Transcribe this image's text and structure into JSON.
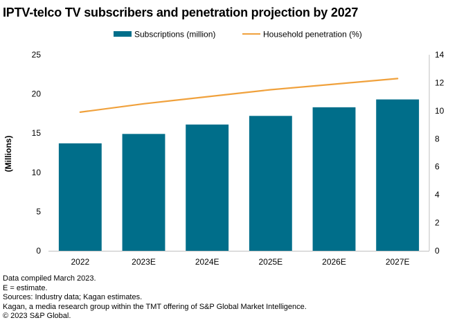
{
  "title": "IPTV-telco TV subscribers and penetration projection by 2027",
  "chart_data": {
    "type": "bar",
    "categories": [
      "2022",
      "2023E",
      "2024E",
      "2025E",
      "2026E",
      "2027E"
    ],
    "series": [
      {
        "name": "Subscriptions (million)",
        "type": "bar",
        "axis": "left",
        "color": "#006e8a",
        "values": [
          13.7,
          14.9,
          16.1,
          17.2,
          18.3,
          19.3
        ]
      },
      {
        "name": "Household penetration (%)",
        "type": "line",
        "axis": "right",
        "color": "#f0a13c",
        "values": [
          9.9,
          10.5,
          11.0,
          11.5,
          11.9,
          12.3
        ]
      }
    ],
    "ylabel": "(Millions)",
    "ylim": [
      0,
      25
    ],
    "yticks": [
      0,
      5,
      10,
      15,
      20,
      25
    ],
    "y2lim": [
      0,
      14
    ],
    "y2ticks": [
      0,
      2,
      4,
      6,
      8,
      10,
      12,
      14
    ],
    "grid": false,
    "legend_position": "top-center"
  },
  "notes": [
    "Data compiled March 2023.",
    "E = estimate.",
    "Sources: Industry data; Kagan estimates.",
    "Kagan, a media research group within the TMT offering of S&P Global Market Intelligence.",
    "© 2023 S&P Global."
  ]
}
